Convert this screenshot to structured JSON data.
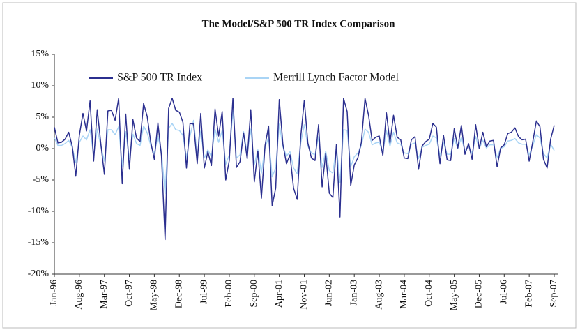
{
  "chart_data": {
    "type": "line",
    "title": "The Model/S&P 500 TR Index Comparison",
    "categories": [
      "Jan-96",
      null,
      null,
      null,
      null,
      null,
      null,
      "Aug-96",
      null,
      null,
      null,
      null,
      null,
      null,
      "Mar-97",
      null,
      null,
      null,
      null,
      null,
      null,
      "Oct-97",
      null,
      null,
      null,
      null,
      null,
      null,
      "May-98",
      null,
      null,
      null,
      null,
      null,
      null,
      "Dec-98",
      null,
      null,
      null,
      null,
      null,
      null,
      "Jul-99",
      null,
      null,
      null,
      null,
      null,
      null,
      "Feb-00",
      null,
      null,
      null,
      null,
      null,
      null,
      "Sep-00",
      null,
      null,
      null,
      null,
      null,
      null,
      "Apr-01",
      null,
      null,
      null,
      null,
      null,
      null,
      "Nov-01",
      null,
      null,
      null,
      null,
      null,
      null,
      "Jun-02",
      null,
      null,
      null,
      null,
      null,
      null,
      "Jan-03",
      null,
      null,
      null,
      null,
      null,
      null,
      "Aug-03",
      null,
      null,
      null,
      null,
      null,
      null,
      "Mar-04",
      null,
      null,
      null,
      null,
      null,
      null,
      "Oct-04",
      null,
      null,
      null,
      null,
      null,
      null,
      "May-05",
      null,
      null,
      null,
      null,
      null,
      null,
      "Dec-05",
      null,
      null,
      null,
      null,
      null,
      null,
      "Jul-06",
      null,
      null,
      null,
      null,
      null,
      null,
      "Feb-07",
      null,
      null,
      null,
      null,
      null,
      null,
      "Sep-07"
    ],
    "series": [
      {
        "name": "S&P 500 TR Index",
        "color": "#2b2f8f",
        "values": [
          3.4,
          0.9,
          1.0,
          1.5,
          2.6,
          0.4,
          -4.4,
          2.1,
          5.6,
          2.8,
          7.6,
          -2.0,
          6.2,
          0.8,
          -4.1,
          6.0,
          6.1,
          4.5,
          8.0,
          -5.6,
          5.5,
          -3.3,
          4.6,
          1.7,
          1.1,
          7.2,
          5.1,
          1.0,
          -1.7,
          4.1,
          -1.1,
          -14.5,
          6.4,
          8.0,
          6.1,
          5.8,
          4.2,
          -3.1,
          4.0,
          3.9,
          -2.4,
          5.6,
          -3.1,
          -0.5,
          -2.7,
          6.3,
          2.0,
          5.9,
          -5.0,
          -1.9,
          8.0,
          -3.0,
          -2.1,
          2.5,
          -1.6,
          6.2,
          -5.3,
          -0.4,
          -7.9,
          0.5,
          3.6,
          -9.1,
          -6.3,
          7.8,
          0.7,
          -2.4,
          -1.0,
          -6.3,
          -8.1,
          1.9,
          7.7,
          0.9,
          -1.5,
          -1.9,
          3.8,
          -6.1,
          -0.8,
          -7.1,
          -7.8,
          0.7,
          -10.9,
          8.0,
          5.9,
          -5.9,
          -2.6,
          -1.5,
          1.0,
          8.0,
          5.3,
          1.3,
          1.8,
          2.0,
          -1.1,
          5.7,
          0.9,
          5.3,
          1.8,
          1.4,
          -1.5,
          -1.6,
          1.4,
          1.9,
          -3.3,
          0.4,
          1.1,
          1.5,
          4.0,
          3.4,
          -2.4,
          2.1,
          -1.8,
          -1.9,
          3.2,
          0.1,
          3.7,
          -0.9,
          0.8,
          -1.7,
          3.8,
          0.0,
          2.6,
          0.3,
          1.2,
          1.3,
          -2.9,
          0.1,
          0.6,
          2.4,
          2.6,
          3.3,
          1.9,
          1.4,
          1.5,
          -2.0,
          1.1,
          4.4,
          3.5,
          -1.7,
          -3.1,
          1.5,
          3.7
        ]
      },
      {
        "name": "Merrill Lynch Factor Model",
        "color": "#a9d4f5",
        "values": [
          1.7,
          0.5,
          0.5,
          0.8,
          1.3,
          0.2,
          -2.2,
          1.0,
          2.0,
          1.4,
          3.0,
          -1.0,
          3.1,
          0.4,
          -2.0,
          3.0,
          3.0,
          2.2,
          3.5,
          -2.8,
          2.7,
          -1.6,
          2.3,
          0.8,
          0.5,
          3.6,
          2.5,
          0.5,
          -0.8,
          2.0,
          -0.5,
          -7.2,
          3.2,
          4.0,
          3.0,
          2.9,
          2.1,
          -1.5,
          2.0,
          4.5,
          -1.2,
          2.8,
          -1.5,
          -0.2,
          -1.3,
          3.1,
          1.0,
          2.9,
          -2.5,
          -1.0,
          6.0,
          -1.5,
          -1.0,
          2.7,
          -0.8,
          3.1,
          -2.6,
          -0.2,
          -3.9,
          0.2,
          1.8,
          -4.5,
          -3.1,
          3.9,
          0.3,
          -1.2,
          -0.5,
          -3.1,
          -4.0,
          0.9,
          3.8,
          0.4,
          -0.7,
          -1.0,
          1.9,
          -3.0,
          -0.4,
          -3.5,
          -3.9,
          0.3,
          -5.4,
          3.0,
          2.9,
          -2.9,
          -1.3,
          -0.7,
          0.5,
          3.1,
          2.6,
          0.6,
          0.9,
          1.0,
          -0.5,
          2.8,
          0.4,
          2.6,
          0.9,
          0.7,
          -0.7,
          -0.8,
          0.7,
          0.9,
          -1.6,
          0.2,
          0.5,
          0.7,
          2.0,
          1.7,
          -1.2,
          1.0,
          -0.9,
          -0.9,
          1.6,
          0.0,
          1.8,
          -0.4,
          0.4,
          -0.8,
          1.9,
          0.0,
          1.3,
          0.1,
          0.6,
          0.6,
          -1.4,
          0.0,
          0.3,
          1.2,
          1.3,
          1.6,
          0.9,
          0.7,
          0.7,
          -1.0,
          0.5,
          2.2,
          1.7,
          -0.8,
          -1.5,
          0.7,
          -0.3
        ]
      }
    ],
    "ylim": [
      -20,
      15
    ],
    "yticks": [
      {
        "value": -20,
        "label": "-20%"
      },
      {
        "value": -15,
        "label": "-15%"
      },
      {
        "value": -10,
        "label": "-10%"
      },
      {
        "value": -5,
        "label": "-5%"
      },
      {
        "value": 0,
        "label": "0%"
      },
      {
        "value": 5,
        "label": "5%"
      },
      {
        "value": 10,
        "label": "10%"
      },
      {
        "value": 15,
        "label": "15%"
      }
    ],
    "legend": "top"
  }
}
